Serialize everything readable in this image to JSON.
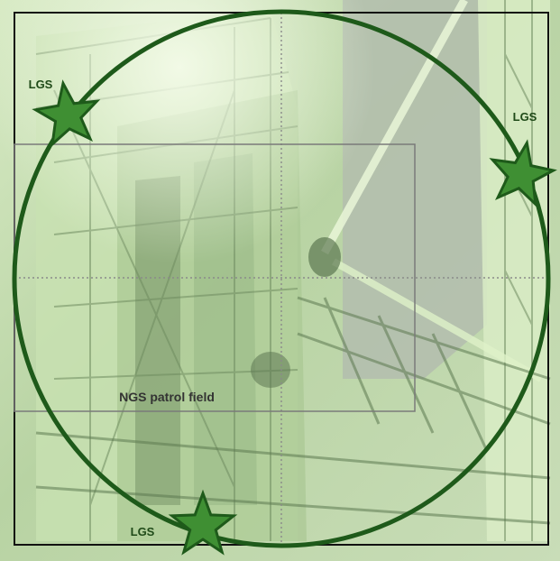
{
  "colors": {
    "background_tint": "#bcd6a8",
    "structure_light": "#e4f3cf",
    "structure_mid": "#8fae7a",
    "structure_dark": "#4f6a44",
    "circle_stroke": "#1e5a1a",
    "star_fill": "#3f8f33",
    "star_stroke": "#1e5a1a",
    "label_color": "#1f4a18",
    "frame_color": "#111111",
    "patrol_box_color": "#7a7a7a",
    "guide_line_color": "#8a8a8a"
  },
  "background": {
    "description_icon": "telescope-structure-photo-icon"
  },
  "diagram": {
    "patrol_field_label": "NGS patrol field",
    "lgs_labels": [
      "LGS",
      "LGS",
      "LGS"
    ]
  }
}
